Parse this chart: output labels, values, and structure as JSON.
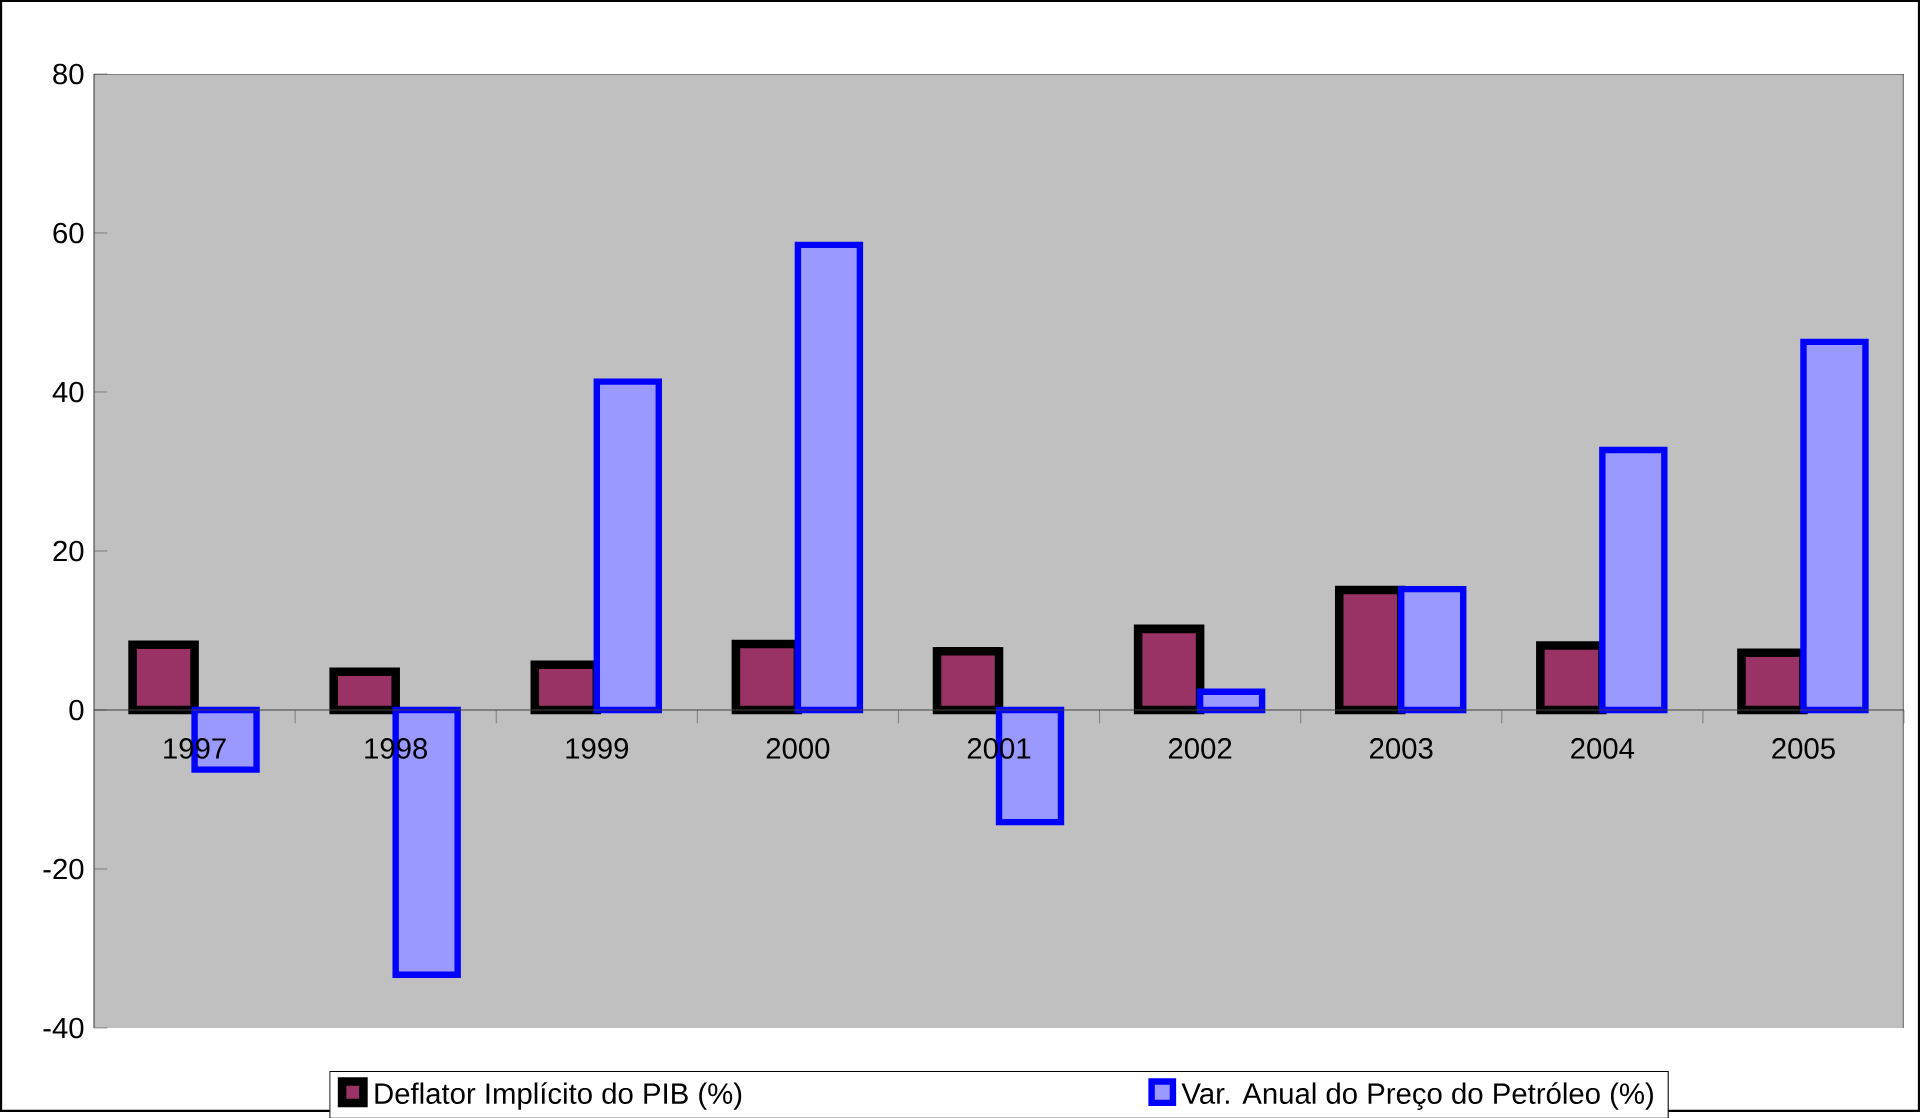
{
  "chart_data": {
    "type": "bar",
    "categories": [
      "1997",
      "1998",
      "1999",
      "2000",
      "2001",
      "2002",
      "2003",
      "2004",
      "2005"
    ],
    "series": [
      {
        "name": "Deflator Implícito do PIB (%)",
        "color": "#993366",
        "values": [
          8.2,
          4.8,
          5.7,
          8.3,
          7.4,
          10.2,
          15.1,
          8.1,
          7.2
        ]
      },
      {
        "name": "Var. Anual do Preço do Petróleo (%)",
        "color": "#9999ff",
        "values": [
          -7.5,
          -33.3,
          41.3,
          58.5,
          -14.1,
          2.3,
          15.2,
          32.7,
          46.3
        ]
      }
    ],
    "ylim": [
      -40,
      80
    ],
    "yticks": [
      -40,
      -20,
      0,
      20,
      40,
      60,
      80
    ],
    "grid": false,
    "legend": "bottom"
  }
}
